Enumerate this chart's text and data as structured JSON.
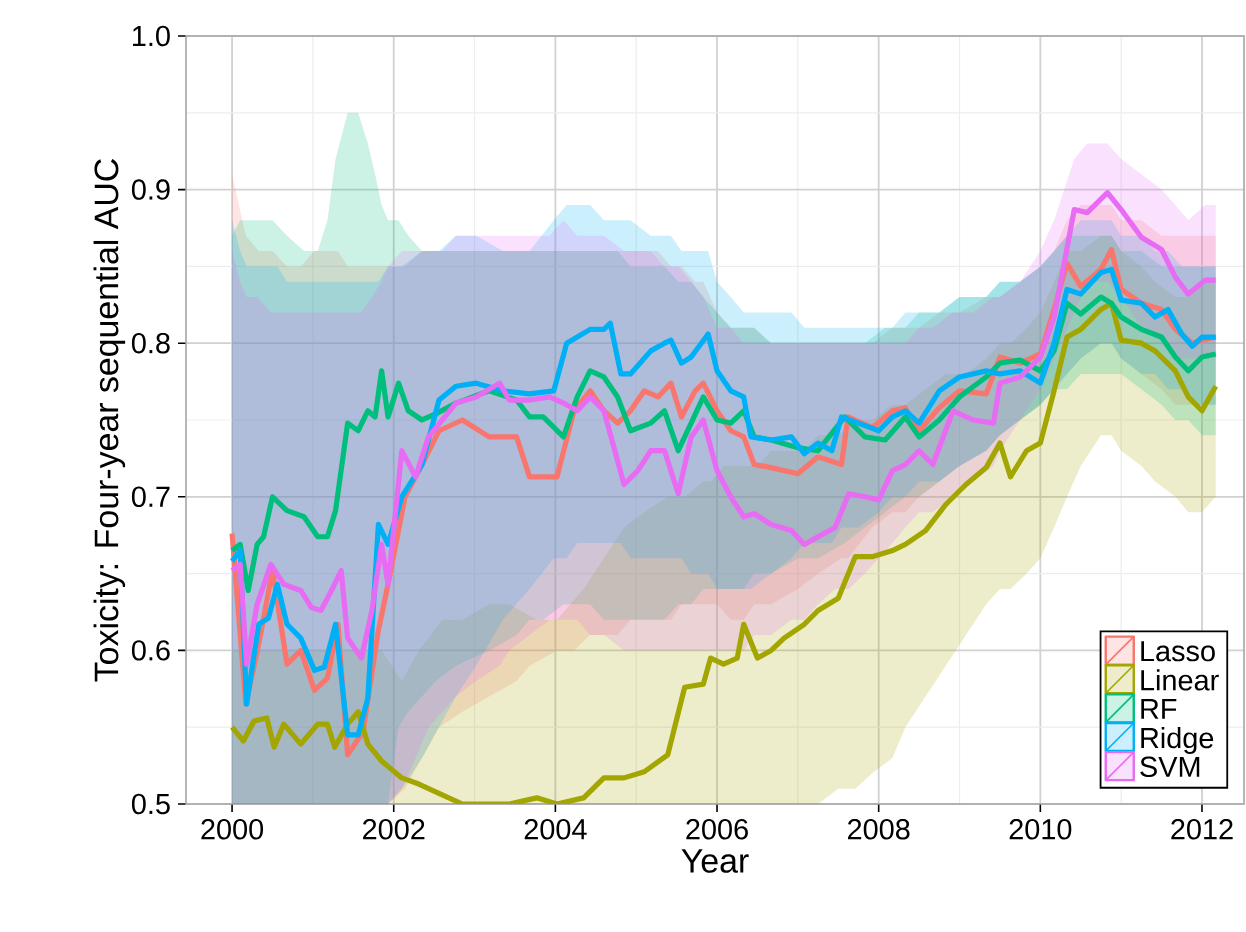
{
  "chart_data": {
    "type": "line",
    "xlabel": "Year",
    "ylabel": "Toxicity: Four-year sequential AUC",
    "xlim": [
      1999.43,
      2012.52
    ],
    "ylim": [
      0.5,
      1.0
    ],
    "xticks": [
      2000,
      2002,
      2004,
      2006,
      2008,
      2010,
      2012
    ],
    "yticks": [
      0.5,
      0.6,
      0.7,
      0.8,
      0.9,
      {
        "value": 1.0,
        "label": "1.0"
      }
    ],
    "grid": true,
    "legend": "bottom right",
    "series": [
      {
        "name": "Lasso",
        "color": "#f8766d",
        "x": [
          2000,
          2000.17,
          2000.33,
          2000.5,
          2000.68,
          2000.85,
          2001.02,
          2001.18,
          2001.31,
          2001.43,
          2001.62,
          2001.81,
          2001.93,
          2002.14,
          2002.35,
          2002.56,
          2002.85,
          2003.18,
          2003.52,
          2003.68,
          2004.02,
          2004.23,
          2004.43,
          2004.6,
          2004.77,
          2004.93,
          2005.1,
          2005.27,
          2005.43,
          2005.56,
          2005.73,
          2005.83,
          2006.0,
          2006.17,
          2006.33,
          2006.46,
          2006.67,
          2007.0,
          2007.25,
          2007.54,
          2007.62,
          2007.92,
          2008.17,
          2008.33,
          2008.5,
          2008.75,
          2009.0,
          2009.33,
          2009.5,
          2009.75,
          2010.0,
          2010.17,
          2010.33,
          2010.5,
          2010.75,
          2010.88,
          2011.0,
          2011.25,
          2011.5,
          2011.67,
          2011.88,
          2012.0,
          2012.17
        ],
        "values": [
          0.676,
          0.565,
          0.604,
          0.652,
          0.591,
          0.6,
          0.574,
          0.582,
          0.617,
          0.532,
          0.547,
          0.613,
          0.643,
          0.7,
          0.721,
          0.743,
          0.75,
          0.739,
          0.739,
          0.713,
          0.713,
          0.756,
          0.769,
          0.756,
          0.748,
          0.756,
          0.769,
          0.765,
          0.774,
          0.752,
          0.769,
          0.774,
          0.756,
          0.743,
          0.739,
          0.721,
          0.719,
          0.715,
          0.726,
          0.721,
          0.752,
          0.745,
          0.756,
          0.758,
          0.743,
          0.758,
          0.769,
          0.767,
          0.791,
          0.787,
          0.793,
          0.822,
          0.852,
          0.837,
          0.848,
          0.861,
          0.835,
          0.826,
          0.822,
          0.809,
          0.8,
          0.802,
          0.804
        ],
        "lower": [
          0.5,
          0.5,
          0.5,
          0.5,
          0.5,
          0.5,
          0.5,
          0.5,
          0.5,
          0.5,
          0.5,
          0.5,
          0.5,
          0.51,
          0.53,
          0.55,
          0.56,
          0.57,
          0.58,
          0.59,
          0.6,
          0.6,
          0.61,
          0.61,
          0.61,
          0.62,
          0.62,
          0.62,
          0.62,
          0.63,
          0.63,
          0.63,
          0.63,
          0.62,
          0.62,
          0.63,
          0.63,
          0.64,
          0.65,
          0.66,
          0.66,
          0.68,
          0.69,
          0.69,
          0.7,
          0.71,
          0.72,
          0.73,
          0.74,
          0.75,
          0.76,
          0.77,
          0.78,
          0.79,
          0.8,
          0.8,
          0.79,
          0.78,
          0.77,
          0.76,
          0.76,
          0.76,
          0.76
        ],
        "upper": [
          0.91,
          0.87,
          0.86,
          0.86,
          0.85,
          0.85,
          0.86,
          0.86,
          0.86,
          0.85,
          0.85,
          0.85,
          0.85,
          0.85,
          0.86,
          0.86,
          0.86,
          0.86,
          0.86,
          0.86,
          0.86,
          0.86,
          0.86,
          0.86,
          0.86,
          0.86,
          0.86,
          0.86,
          0.85,
          0.85,
          0.84,
          0.84,
          0.82,
          0.81,
          0.81,
          0.81,
          0.8,
          0.8,
          0.8,
          0.8,
          0.8,
          0.8,
          0.81,
          0.81,
          0.81,
          0.82,
          0.82,
          0.83,
          0.83,
          0.84,
          0.85,
          0.86,
          0.88,
          0.89,
          0.89,
          0.89,
          0.88,
          0.88,
          0.87,
          0.87,
          0.87,
          0.87,
          0.87
        ]
      },
      {
        "name": "Linear",
        "color": "#a3a500",
        "x": [
          2000,
          2000.14,
          2000.27,
          2000.43,
          2000.52,
          2000.64,
          2000.85,
          2001.06,
          2001.18,
          2001.27,
          2001.43,
          2001.56,
          2001.68,
          2001.85,
          2002.1,
          2002.31,
          2002.6,
          2002.85,
          2003.18,
          2003.43,
          2003.77,
          2004.02,
          2004.35,
          2004.6,
          2004.85,
          2005.1,
          2005.39,
          2005.6,
          2005.83,
          2005.92,
          2006.08,
          2006.25,
          2006.33,
          2006.5,
          2006.67,
          2006.83,
          2007.08,
          2007.25,
          2007.5,
          2007.71,
          2007.92,
          2008.17,
          2008.33,
          2008.58,
          2008.83,
          2009.08,
          2009.33,
          2009.5,
          2009.63,
          2009.83,
          2010.0,
          2010.17,
          2010.33,
          2010.5,
          2010.75,
          2010.88,
          2011.0,
          2011.25,
          2011.42,
          2011.67,
          2011.83,
          2012.0,
          2012.17
        ],
        "values": [
          0.55,
          0.541,
          0.554,
          0.556,
          0.537,
          0.552,
          0.539,
          0.552,
          0.552,
          0.537,
          0.552,
          0.56,
          0.539,
          0.528,
          0.517,
          0.513,
          0.506,
          0.5,
          0.5,
          0.5,
          0.504,
          0.5,
          0.504,
          0.517,
          0.517,
          0.521,
          0.532,
          0.576,
          0.578,
          0.595,
          0.591,
          0.595,
          0.617,
          0.595,
          0.6,
          0.608,
          0.617,
          0.626,
          0.634,
          0.661,
          0.661,
          0.665,
          0.669,
          0.678,
          0.695,
          0.708,
          0.719,
          0.735,
          0.713,
          0.73,
          0.735,
          0.769,
          0.804,
          0.809,
          0.822,
          0.826,
          0.802,
          0.8,
          0.795,
          0.782,
          0.765,
          0.756,
          0.772
        ],
        "lower": [
          0.5,
          0.5,
          0.5,
          0.5,
          0.5,
          0.5,
          0.5,
          0.5,
          0.5,
          0.5,
          0.5,
          0.5,
          0.5,
          0.5,
          0.5,
          0.5,
          0.5,
          0.5,
          0.5,
          0.5,
          0.5,
          0.5,
          0.5,
          0.5,
          0.5,
          0.5,
          0.5,
          0.5,
          0.5,
          0.5,
          0.5,
          0.5,
          0.5,
          0.5,
          0.5,
          0.5,
          0.5,
          0.5,
          0.51,
          0.51,
          0.52,
          0.53,
          0.55,
          0.57,
          0.59,
          0.61,
          0.63,
          0.64,
          0.64,
          0.65,
          0.66,
          0.68,
          0.7,
          0.72,
          0.74,
          0.74,
          0.73,
          0.72,
          0.71,
          0.7,
          0.69,
          0.69,
          0.7
        ],
        "upper": [
          0.6,
          0.6,
          0.6,
          0.6,
          0.6,
          0.6,
          0.6,
          0.6,
          0.6,
          0.6,
          0.6,
          0.6,
          0.6,
          0.6,
          0.58,
          0.6,
          0.62,
          0.62,
          0.63,
          0.63,
          0.62,
          0.62,
          0.64,
          0.66,
          0.68,
          0.69,
          0.7,
          0.7,
          0.71,
          0.71,
          0.72,
          0.72,
          0.72,
          0.72,
          0.73,
          0.73,
          0.73,
          0.74,
          0.74,
          0.75,
          0.75,
          0.76,
          0.76,
          0.77,
          0.78,
          0.78,
          0.79,
          0.8,
          0.8,
          0.81,
          0.82,
          0.84,
          0.86,
          0.86,
          0.87,
          0.87,
          0.86,
          0.85,
          0.84,
          0.83,
          0.83,
          0.84,
          0.84
        ]
      },
      {
        "name": "RF",
        "color": "#00bf7d",
        "x": [
          2000,
          2000.1,
          2000.2,
          2000.31,
          2000.39,
          2000.5,
          2000.68,
          2000.89,
          2001.06,
          2001.18,
          2001.28,
          2001.43,
          2001.56,
          2001.68,
          2001.77,
          2001.85,
          2001.93,
          2002.06,
          2002.18,
          2002.35,
          2002.52,
          2002.77,
          2003.18,
          2003.52,
          2003.68,
          2003.85,
          2004.1,
          2004.27,
          2004.43,
          2004.6,
          2004.77,
          2004.93,
          2005.18,
          2005.35,
          2005.52,
          2005.68,
          2005.83,
          2006.0,
          2006.17,
          2006.33,
          2006.46,
          2006.67,
          2007.0,
          2007.25,
          2007.58,
          2007.83,
          2008.08,
          2008.33,
          2008.5,
          2008.75,
          2009.0,
          2009.33,
          2009.5,
          2009.75,
          2010.0,
          2010.17,
          2010.33,
          2010.5,
          2010.75,
          2010.88,
          2011.0,
          2011.25,
          2011.5,
          2011.67,
          2011.83,
          2012.0,
          2012.17
        ],
        "values": [
          0.665,
          0.669,
          0.639,
          0.669,
          0.674,
          0.7,
          0.691,
          0.687,
          0.674,
          0.674,
          0.691,
          0.748,
          0.743,
          0.756,
          0.752,
          0.782,
          0.752,
          0.774,
          0.756,
          0.75,
          0.754,
          0.761,
          0.769,
          0.763,
          0.752,
          0.752,
          0.739,
          0.765,
          0.782,
          0.778,
          0.765,
          0.743,
          0.748,
          0.756,
          0.73,
          0.748,
          0.765,
          0.75,
          0.748,
          0.756,
          0.739,
          0.737,
          0.732,
          0.73,
          0.752,
          0.739,
          0.737,
          0.752,
          0.739,
          0.75,
          0.765,
          0.778,
          0.787,
          0.789,
          0.782,
          0.795,
          0.826,
          0.819,
          0.83,
          0.826,
          0.817,
          0.809,
          0.804,
          0.791,
          0.782,
          0.791,
          0.793
        ],
        "lower": [
          0.5,
          0.5,
          0.5,
          0.5,
          0.5,
          0.5,
          0.5,
          0.5,
          0.5,
          0.5,
          0.5,
          0.5,
          0.5,
          0.5,
          0.5,
          0.5,
          0.5,
          0.55,
          0.56,
          0.57,
          0.58,
          0.59,
          0.6,
          0.61,
          0.62,
          0.62,
          0.63,
          0.63,
          0.63,
          0.62,
          0.62,
          0.62,
          0.62,
          0.62,
          0.63,
          0.63,
          0.64,
          0.64,
          0.64,
          0.64,
          0.65,
          0.65,
          0.66,
          0.66,
          0.67,
          0.68,
          0.69,
          0.7,
          0.7,
          0.71,
          0.72,
          0.73,
          0.74,
          0.75,
          0.76,
          0.77,
          0.77,
          0.78,
          0.78,
          0.78,
          0.78,
          0.77,
          0.76,
          0.75,
          0.75,
          0.74,
          0.74
        ],
        "upper": [
          0.87,
          0.88,
          0.88,
          0.88,
          0.88,
          0.88,
          0.87,
          0.86,
          0.86,
          0.88,
          0.92,
          0.95,
          0.95,
          0.93,
          0.91,
          0.89,
          0.88,
          0.88,
          0.87,
          0.86,
          0.86,
          0.86,
          0.86,
          0.86,
          0.86,
          0.86,
          0.86,
          0.86,
          0.86,
          0.86,
          0.86,
          0.85,
          0.85,
          0.85,
          0.84,
          0.84,
          0.83,
          0.82,
          0.81,
          0.81,
          0.81,
          0.8,
          0.8,
          0.8,
          0.8,
          0.8,
          0.81,
          0.81,
          0.82,
          0.82,
          0.83,
          0.83,
          0.84,
          0.84,
          0.85,
          0.86,
          0.87,
          0.87,
          0.87,
          0.87,
          0.86,
          0.86,
          0.85,
          0.85,
          0.85,
          0.85,
          0.85
        ]
      },
      {
        "name": "Ridge",
        "color": "#00b0f6",
        "x": [
          2000,
          2000.1,
          2000.18,
          2000.33,
          2000.45,
          2000.56,
          2000.68,
          2000.85,
          2001.02,
          2001.14,
          2001.28,
          2001.43,
          2001.56,
          2001.68,
          2001.81,
          2001.93,
          2002.1,
          2002.35,
          2002.56,
          2002.77,
          2003.02,
          2003.35,
          2003.68,
          2003.98,
          2004.14,
          2004.27,
          2004.43,
          2004.6,
          2004.68,
          2004.81,
          2004.93,
          2005.18,
          2005.35,
          2005.43,
          2005.56,
          2005.68,
          2005.89,
          2006.0,
          2006.17,
          2006.33,
          2006.42,
          2006.67,
          2006.92,
          2007.08,
          2007.25,
          2007.42,
          2007.54,
          2007.75,
          2008.0,
          2008.17,
          2008.33,
          2008.5,
          2008.75,
          2009.0,
          2009.33,
          2009.5,
          2009.75,
          2010.0,
          2010.17,
          2010.33,
          2010.5,
          2010.75,
          2010.88,
          2011.0,
          2011.25,
          2011.42,
          2011.58,
          2011.75,
          2011.88,
          2012.0,
          2012.17
        ],
        "values": [
          0.658,
          0.665,
          0.565,
          0.617,
          0.621,
          0.643,
          0.617,
          0.608,
          0.587,
          0.589,
          0.617,
          0.545,
          0.545,
          0.569,
          0.682,
          0.669,
          0.7,
          0.721,
          0.763,
          0.772,
          0.774,
          0.769,
          0.767,
          0.769,
          0.8,
          0.804,
          0.809,
          0.809,
          0.813,
          0.78,
          0.78,
          0.795,
          0.8,
          0.802,
          0.787,
          0.791,
          0.806,
          0.782,
          0.769,
          0.765,
          0.739,
          0.737,
          0.739,
          0.728,
          0.735,
          0.73,
          0.752,
          0.748,
          0.743,
          0.752,
          0.756,
          0.748,
          0.769,
          0.778,
          0.782,
          0.78,
          0.782,
          0.774,
          0.8,
          0.835,
          0.832,
          0.846,
          0.848,
          0.828,
          0.826,
          0.817,
          0.822,
          0.806,
          0.798,
          0.804,
          0.804
        ],
        "lower": [
          0.5,
          0.5,
          0.5,
          0.5,
          0.5,
          0.5,
          0.5,
          0.5,
          0.5,
          0.5,
          0.5,
          0.5,
          0.5,
          0.5,
          0.5,
          0.5,
          0.51,
          0.53,
          0.55,
          0.57,
          0.59,
          0.62,
          0.64,
          0.66,
          0.66,
          0.67,
          0.67,
          0.67,
          0.67,
          0.67,
          0.66,
          0.66,
          0.66,
          0.66,
          0.66,
          0.65,
          0.65,
          0.64,
          0.64,
          0.64,
          0.64,
          0.65,
          0.66,
          0.67,
          0.67,
          0.67,
          0.68,
          0.68,
          0.69,
          0.7,
          0.7,
          0.71,
          0.71,
          0.72,
          0.73,
          0.74,
          0.75,
          0.76,
          0.77,
          0.78,
          0.79,
          0.8,
          0.8,
          0.79,
          0.78,
          0.78,
          0.77,
          0.77,
          0.76,
          0.76,
          0.76
        ],
        "upper": [
          0.88,
          0.86,
          0.85,
          0.85,
          0.85,
          0.85,
          0.84,
          0.84,
          0.84,
          0.84,
          0.84,
          0.84,
          0.84,
          0.84,
          0.84,
          0.85,
          0.85,
          0.86,
          0.86,
          0.87,
          0.87,
          0.86,
          0.86,
          0.88,
          0.89,
          0.89,
          0.89,
          0.88,
          0.88,
          0.88,
          0.88,
          0.87,
          0.87,
          0.87,
          0.86,
          0.86,
          0.86,
          0.84,
          0.83,
          0.82,
          0.82,
          0.82,
          0.82,
          0.81,
          0.81,
          0.81,
          0.81,
          0.81,
          0.81,
          0.81,
          0.82,
          0.82,
          0.82,
          0.83,
          0.83,
          0.84,
          0.84,
          0.85,
          0.86,
          0.87,
          0.88,
          0.88,
          0.88,
          0.87,
          0.87,
          0.86,
          0.86,
          0.85,
          0.85,
          0.85,
          0.85
        ]
      },
      {
        "name": "SVM",
        "color": "#e76bf3",
        "x": [
          2000,
          2000.1,
          2000.18,
          2000.31,
          2000.48,
          2000.64,
          2000.85,
          2000.98,
          2001.1,
          2001.23,
          2001.35,
          2001.43,
          2001.6,
          2001.73,
          2001.85,
          2001.93,
          2002.1,
          2002.27,
          2002.43,
          2002.6,
          2002.77,
          2003.02,
          2003.31,
          2003.43,
          2003.68,
          2003.93,
          2004.1,
          2004.27,
          2004.43,
          2004.6,
          2004.85,
          2005.02,
          2005.18,
          2005.35,
          2005.52,
          2005.68,
          2005.83,
          2006.0,
          2006.17,
          2006.33,
          2006.46,
          2006.67,
          2006.92,
          2007.08,
          2007.25,
          2007.46,
          2007.63,
          2007.83,
          2008.0,
          2008.17,
          2008.33,
          2008.5,
          2008.67,
          2008.92,
          2009.17,
          2009.42,
          2009.5,
          2009.75,
          2010.0,
          2010.17,
          2010.42,
          2010.58,
          2010.83,
          2011.0,
          2011.25,
          2011.5,
          2011.67,
          2011.83,
          2012.04,
          2012.17
        ],
        "values": [
          0.652,
          0.656,
          0.591,
          0.63,
          0.656,
          0.643,
          0.639,
          0.628,
          0.626,
          0.639,
          0.652,
          0.608,
          0.595,
          0.626,
          0.669,
          0.643,
          0.73,
          0.713,
          0.739,
          0.75,
          0.761,
          0.765,
          0.774,
          0.763,
          0.763,
          0.765,
          0.761,
          0.756,
          0.765,
          0.756,
          0.708,
          0.717,
          0.73,
          0.73,
          0.702,
          0.739,
          0.75,
          0.717,
          0.7,
          0.687,
          0.689,
          0.682,
          0.678,
          0.669,
          0.674,
          0.68,
          0.702,
          0.7,
          0.698,
          0.717,
          0.721,
          0.73,
          0.721,
          0.756,
          0.75,
          0.748,
          0.774,
          0.778,
          0.791,
          0.817,
          0.887,
          0.885,
          0.898,
          0.887,
          0.869,
          0.861,
          0.843,
          0.832,
          0.841,
          0.841
        ],
        "lower": [
          0.5,
          0.5,
          0.5,
          0.5,
          0.5,
          0.5,
          0.5,
          0.5,
          0.5,
          0.5,
          0.5,
          0.5,
          0.5,
          0.5,
          0.5,
          0.5,
          0.51,
          0.53,
          0.55,
          0.56,
          0.57,
          0.58,
          0.59,
          0.6,
          0.61,
          0.62,
          0.62,
          0.62,
          0.61,
          0.61,
          0.6,
          0.6,
          0.6,
          0.6,
          0.6,
          0.6,
          0.6,
          0.6,
          0.6,
          0.6,
          0.61,
          0.61,
          0.62,
          0.62,
          0.63,
          0.64,
          0.64,
          0.65,
          0.66,
          0.67,
          0.68,
          0.69,
          0.69,
          0.7,
          0.71,
          0.72,
          0.73,
          0.75,
          0.77,
          0.79,
          0.82,
          0.84,
          0.84,
          0.83,
          0.81,
          0.8,
          0.79,
          0.79,
          0.79,
          0.79
        ],
        "upper": [
          0.86,
          0.84,
          0.83,
          0.83,
          0.82,
          0.82,
          0.82,
          0.82,
          0.82,
          0.82,
          0.82,
          0.82,
          0.82,
          0.83,
          0.84,
          0.85,
          0.86,
          0.86,
          0.86,
          0.86,
          0.87,
          0.87,
          0.87,
          0.87,
          0.87,
          0.87,
          0.88,
          0.87,
          0.87,
          0.87,
          0.86,
          0.86,
          0.86,
          0.85,
          0.85,
          0.84,
          0.83,
          0.81,
          0.81,
          0.8,
          0.8,
          0.8,
          0.8,
          0.8,
          0.8,
          0.8,
          0.8,
          0.8,
          0.8,
          0.8,
          0.8,
          0.81,
          0.81,
          0.82,
          0.82,
          0.83,
          0.83,
          0.84,
          0.86,
          0.88,
          0.92,
          0.93,
          0.93,
          0.92,
          0.91,
          0.9,
          0.89,
          0.88,
          0.89,
          0.89
        ]
      }
    ]
  }
}
